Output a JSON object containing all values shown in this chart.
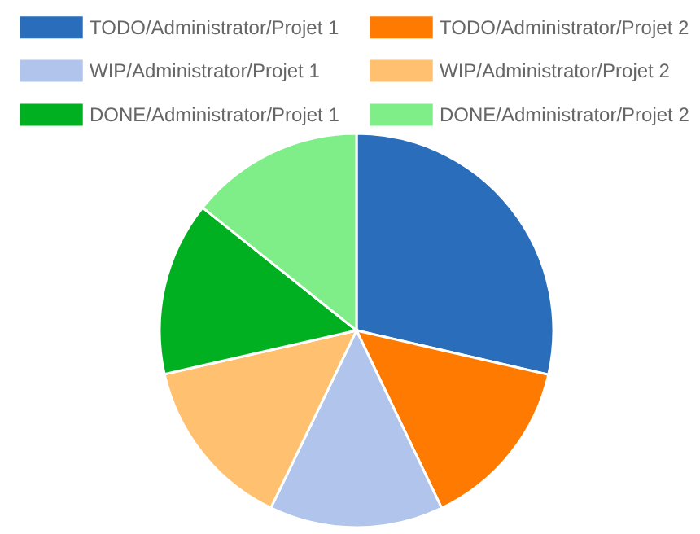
{
  "chart_data": {
    "type": "pie",
    "categories": [
      "TODO/Administrator/Projet 1",
      "TODO/Administrator/Projet 2",
      "WIP/Administrator/Projet 1",
      "WIP/Administrator/Projet 2",
      "DONE/Administrator/Projet 1",
      "DONE/Administrator/Projet 2"
    ],
    "values": [
      28.6,
      14.28,
      14.28,
      14.28,
      14.28,
      14.28
    ],
    "colors": [
      "#2a6ebb",
      "#ff7a00",
      "#b0c4ec",
      "#ffc06f",
      "#00b020",
      "#80ee88"
    ],
    "legend": "top"
  }
}
